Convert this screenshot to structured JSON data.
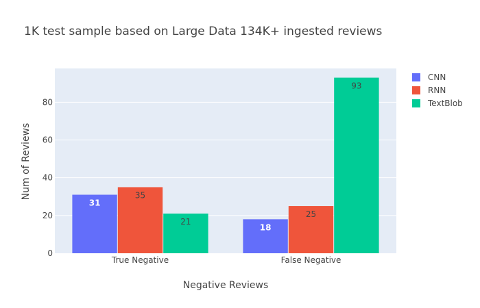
{
  "chart_data": {
    "type": "bar",
    "title": "1K test sample based on Large Data 134K+ ingested reviews",
    "xlabel": "Negative Reviews",
    "ylabel": "Num of Reviews",
    "categories": [
      "True Negative",
      "False Negative"
    ],
    "ylim": [
      0,
      97.9
    ],
    "yticks": [
      0,
      20,
      40,
      60,
      80
    ],
    "grid": true,
    "legend_position": "top-right",
    "series": [
      {
        "name": "CNN",
        "values": [
          31,
          18
        ],
        "color": "#636efa",
        "label_color": "#ffffff"
      },
      {
        "name": "RNN",
        "values": [
          35,
          25
        ],
        "color": "#ef553b",
        "label_color": "#444444"
      },
      {
        "name": "TextBlob",
        "values": [
          21,
          93
        ],
        "color": "#00cc96",
        "label_color": "#444444"
      }
    ],
    "plot_bg": "#e5ecf6"
  }
}
